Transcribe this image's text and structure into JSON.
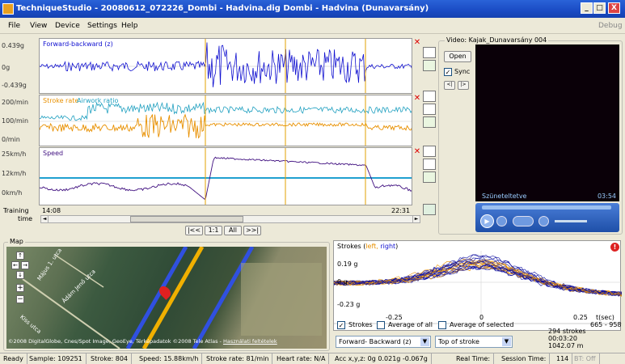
{
  "window": {
    "title": "TechniqueStudio - 20080612_072226_Dombi - Hadvina.dig  Dombi - Hadvina (Dunavarsány)",
    "min_label": "_",
    "max_label": "□",
    "close_label": "X"
  },
  "menu": {
    "items": [
      "File",
      "View",
      "Device",
      "Settings",
      "Help"
    ],
    "right_label": "Debug"
  },
  "plots": {
    "accel": {
      "label": "Forward-backward (z)",
      "y_top": "0.439g",
      "y_mid": "0g",
      "y_bot": "-0.439g"
    },
    "stroke": {
      "label_a": "Stroke rate",
      "label_b": "Airwork ratio",
      "y_top": "200/min",
      "y_mid": "100/min",
      "y_bot": "0/min"
    },
    "speed": {
      "label": "Speed",
      "y_top": "25km/h",
      "y_mid": "12km/h",
      "y_bot": "0km/h"
    }
  },
  "timeline": {
    "label_line1": "Training",
    "label_line2": "time",
    "start": "14:08",
    "end": "22:31",
    "buttons": [
      "|<<",
      "1:1",
      "All",
      ">>|"
    ]
  },
  "video": {
    "group_label": "Video: Kajak_Dunavarsány 004",
    "open_label": "Open",
    "sync_label": "Sync",
    "sync_checked": true,
    "step_back": "<|",
    "step_fwd": "|>",
    "status": "Szüneteltetve",
    "time": "03:54"
  },
  "map": {
    "group_label": "Map",
    "streets": [
      "Május 1. utca",
      "Ádám Jenő utca",
      "Kiss utca"
    ],
    "copyright": "©2008 DigitalGlobe, Cnes/Spot Image, GeoEye, Térképadatok ©2008 Tele Atlas - ",
    "terms_link": "Használati feltételek",
    "zoom_plus": "+",
    "zoom_minus": "−"
  },
  "strokes": {
    "title": "Strokes (",
    "left_label": "left,",
    "right_label": "right",
    "title_end": ")",
    "y_top": "0.19 g",
    "y_mid": "0 g",
    "y_bot": "-0.23 g",
    "x_left": "-0.25",
    "x_mid": "0",
    "x_right": "0.25",
    "x_unit": "t(sec)",
    "range_label": "665 - 958",
    "cb_strokes": "Strokes",
    "cb_avg_all": "Average of all",
    "cb_avg_sel": "Average of selected",
    "cb_strokes_checked": true,
    "signal_select": "Forward- Backward (z)",
    "align_select": "Top of stroke",
    "count": "294 strokes",
    "duration": "00:03:20",
    "distance": "1042.07 m"
  },
  "status_bar": [
    "Ready",
    "Sample: 109251",
    "Stroke: 804",
    "Speed: 15.88km/h",
    "Stroke rate: 81/min",
    "Heart rate: N/A",
    "Acc x,y,z: 0g  0.021g  -0.067g",
    "Real Time:",
    "Session Time:",
    "114",
    "BT: Off"
  ],
  "colors": {
    "accel_line": "#1010d0",
    "stroke_rate": "#e89000",
    "airwork": "#20a0c0",
    "speed_line": "#401080",
    "marker": "#e0a000",
    "speed_ref": "#20a0d0"
  }
}
